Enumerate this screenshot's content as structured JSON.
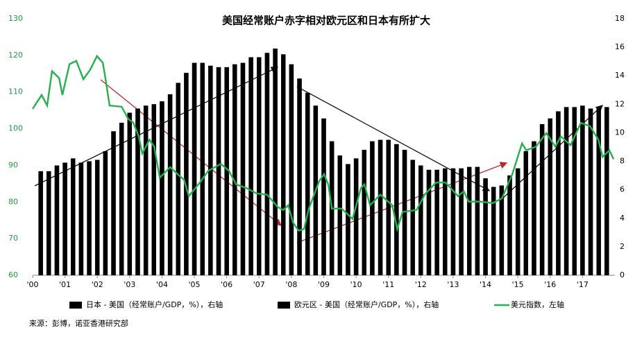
{
  "chart_data": {
    "type": "bar-line",
    "title": "美国经常账户赤字相对欧元区和日本有所扩大",
    "source": "来源：彭博，诺亚香港研究部",
    "xlim": [
      2000,
      2018
    ],
    "xticks": [
      {
        "value": 2000,
        "label": "'00"
      },
      {
        "value": 2001,
        "label": "'01"
      },
      {
        "value": 2002,
        "label": "'02"
      },
      {
        "value": 2003,
        "label": "'03"
      },
      {
        "value": 2004,
        "label": "'04"
      },
      {
        "value": 2005,
        "label": "'05"
      },
      {
        "value": 2006,
        "label": "'06"
      },
      {
        "value": 2007,
        "label": "'07"
      },
      {
        "value": 2008,
        "label": "'08"
      },
      {
        "value": 2009,
        "label": "'09"
      },
      {
        "value": 2010,
        "label": "'10"
      },
      {
        "value": 2011,
        "label": "'11"
      },
      {
        "value": 2012,
        "label": "'12"
      },
      {
        "value": 2013,
        "label": "'13"
      },
      {
        "value": 2014,
        "label": "'14"
      },
      {
        "value": 2015,
        "label": "'15"
      },
      {
        "value": 2016,
        "label": "'16"
      },
      {
        "value": 2017,
        "label": "'17"
      }
    ],
    "ylim": [
      60,
      130
    ],
    "yticks": [
      60,
      70,
      80,
      90,
      100,
      110,
      120,
      130
    ],
    "y2lim": [
      0,
      18
    ],
    "y2ticks": [
      0,
      2,
      4,
      6,
      8,
      10,
      12,
      14,
      16,
      18
    ],
    "x": [
      2000.25,
      2000.5,
      2000.75,
      2001,
      2001.25,
      2001.5,
      2001.75,
      2002,
      2002.25,
      2002.5,
      2002.75,
      2003,
      2003.25,
      2003.5,
      2003.75,
      2004,
      2004.25,
      2004.5,
      2004.75,
      2005,
      2005.25,
      2005.5,
      2005.75,
      2006,
      2006.25,
      2006.5,
      2006.75,
      2007,
      2007.25,
      2007.5,
      2007.75,
      2008,
      2008.25,
      2008.5,
      2008.75,
      2009,
      2009.25,
      2009.5,
      2009.75,
      2010,
      2010.25,
      2010.5,
      2010.75,
      2011,
      2011.25,
      2011.5,
      2011.75,
      2012,
      2012.25,
      2012.5,
      2012.75,
      2013,
      2013.25,
      2013.5,
      2013.75,
      2014,
      2014.25,
      2014.5,
      2014.75,
      2015,
      2015.25,
      2015.5,
      2015.75,
      2016,
      2016.25,
      2016.5,
      2016.75,
      2017,
      2017.25,
      2017.5,
      2017.75
    ],
    "series": [
      {
        "name": "日本 - 美国（经常账户/GDP，%），右轴",
        "color": "#000000",
        "axis": "y2",
        "values": [
          7.3,
          7.3,
          7.7,
          7.9,
          8.2,
          7.9,
          8.0,
          8.1,
          8.7,
          10.1,
          10.7,
          11.4,
          11.7,
          11.9,
          12.0,
          12.2,
          12.7,
          13.5,
          14.2,
          14.9,
          14.9,
          14.7,
          14.6,
          14.6,
          14.8,
          14.9,
          15.3,
          15.3,
          15.6,
          15.9,
          15.5,
          14.8,
          13.8,
          12.8,
          11.9,
          11.0,
          9.4,
          8.4,
          7.8,
          8.2,
          8.8,
          9.4,
          9.5,
          9.5,
          9.2,
          8.8,
          8.1,
          7.7,
          7.4,
          7.4,
          7.5,
          7.5,
          7.5,
          7.6,
          7.6,
          6.8,
          6.2,
          6.3,
          7.0,
          7.5,
          8.7,
          9.4,
          10.6,
          11.0,
          11.5,
          11.8,
          11.8,
          11.9,
          11.7,
          11.7,
          11.8
        ]
      },
      {
        "name": "欧元区 - 美国（经常账户/GDP，%），右轴",
        "color": "#000000",
        "axis": "y2",
        "values": [
          7.3,
          7.3,
          7.7,
          7.9,
          8.2,
          7.9,
          8.0,
          8.1,
          8.7,
          10.1,
          10.7,
          11.4,
          11.7,
          11.9,
          12.0,
          12.2,
          12.7,
          13.5,
          14.2,
          14.9,
          14.9,
          14.7,
          14.6,
          14.6,
          14.8,
          14.9,
          15.3,
          15.3,
          15.6,
          15.9,
          15.5,
          14.8,
          13.8,
          12.8,
          11.9,
          11.0,
          9.4,
          8.4,
          7.8,
          8.2,
          8.8,
          9.4,
          9.5,
          9.5,
          9.2,
          8.8,
          8.1,
          7.7,
          7.4,
          7.4,
          7.5,
          7.5,
          7.5,
          7.6,
          7.6,
          6.8,
          6.2,
          6.3,
          7.0,
          7.5,
          8.7,
          9.4,
          10.6,
          11.0,
          11.5,
          11.8,
          11.8,
          11.9,
          11.7,
          11.7,
          11.8
        ]
      },
      {
        "name": "美元指数，左轴",
        "color": "#22b14c",
        "type": "line",
        "x": [
          2000,
          2000.28,
          2000.45,
          2000.6,
          2000.82,
          2000.92,
          2001.14,
          2001.35,
          2001.57,
          2001.78,
          2001.99,
          2002.17,
          2002.25,
          2002.38,
          2002.75,
          2002.96,
          2003.11,
          2003.28,
          2003.39,
          2003.61,
          2003.76,
          2003.93,
          2004.25,
          2004.53,
          2004.68,
          2004.83,
          2005.17,
          2005.43,
          2005.82,
          2006.07,
          2006.29,
          2006.61,
          2006.93,
          2007.25,
          2007.58,
          2007.75,
          2007.9,
          2008.05,
          2008.22,
          2008.39,
          2008.54,
          2008.86,
          2009.01,
          2009.14,
          2009.25,
          2009.55,
          2009.89,
          2010.15,
          2010.26,
          2010.43,
          2010.75,
          2011.12,
          2011.27,
          2011.44,
          2011.87,
          2012.12,
          2012.47,
          2012.77,
          2013.15,
          2013.33,
          2013.48,
          2013.84,
          2014.23,
          2014.51,
          2014.83,
          2015.13,
          2015.26,
          2015.56,
          2015.88,
          2016.16,
          2016.33,
          2016.63,
          2016.95,
          2017.23,
          2017.49,
          2017.62,
          2017.83,
          2017.96
        ],
        "values": [
          105.4,
          109.2,
          106.3,
          115.7,
          113.8,
          109.2,
          117.6,
          118.5,
          113.5,
          116.1,
          119.8,
          118.0,
          113.8,
          106.3,
          106.0,
          102.6,
          101.7,
          97.9,
          93.2,
          97.0,
          95.1,
          86.6,
          89.5,
          87.2,
          86.1,
          81.6,
          85.3,
          88.5,
          90.4,
          88.5,
          84.8,
          83.8,
          82.3,
          82.0,
          78.6,
          77.8,
          79.1,
          74.4,
          72.2,
          72.6,
          78.2,
          85.7,
          87.6,
          84.8,
          78.2,
          78.2,
          75.4,
          83.8,
          84.8,
          79.1,
          82.0,
          79.1,
          72.6,
          77.3,
          77.8,
          82.0,
          85.3,
          85.3,
          81.6,
          82.9,
          80.1,
          80.1,
          79.7,
          81.0,
          87.6,
          96.0,
          94.1,
          95.1,
          98.8,
          95.1,
          97.9,
          95.5,
          101.6,
          100.7,
          97.0,
          92.3,
          94.1,
          91.7
        ]
      }
    ]
  }
}
